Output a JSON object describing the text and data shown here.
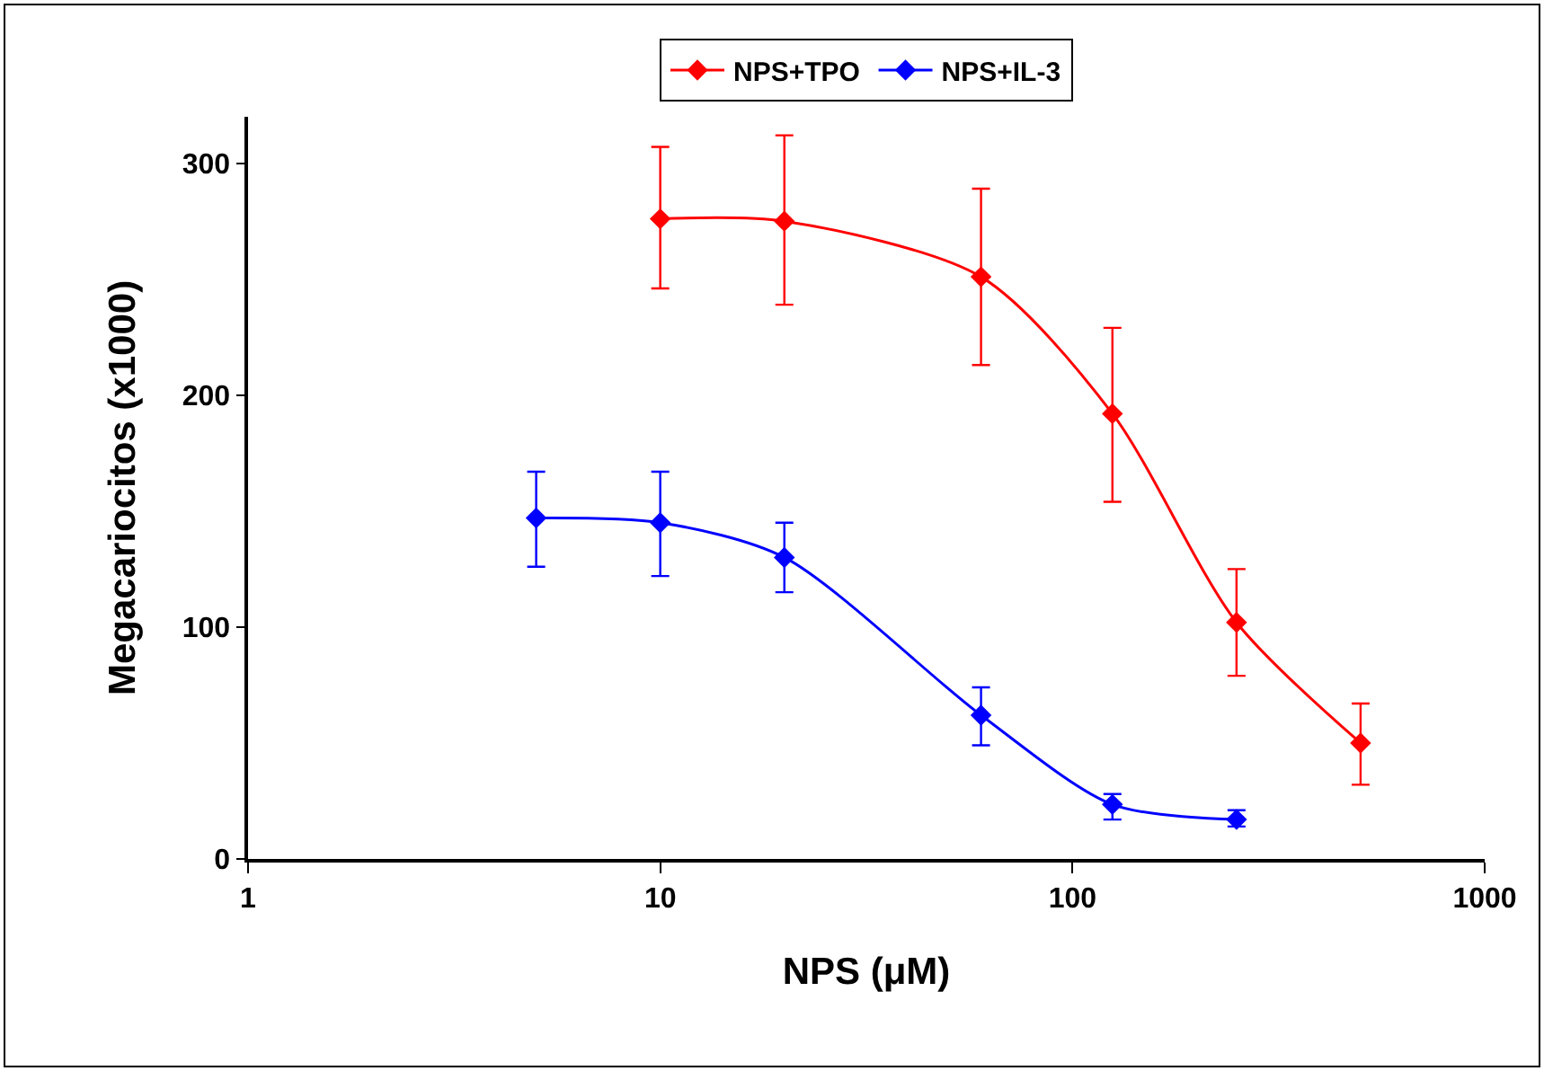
{
  "chart_data": {
    "type": "line",
    "xlabel": "NPS (μM)",
    "ylabel": "Megacariocitos (x1000)",
    "log": "x",
    "xlim": [
      1,
      1000
    ],
    "xticks": [
      1,
      10,
      100,
      1000
    ],
    "ylim": [
      0,
      320
    ],
    "yticks": [
      0,
      100,
      200,
      300
    ],
    "grid": false,
    "legend": "top",
    "marker": "diamond",
    "line_style": "solid",
    "series": [
      {
        "name": "NPS+TPO",
        "color": "#ff0000",
        "x": [
          10,
          20,
          60,
          125,
          250,
          500
        ],
        "values": [
          276,
          275,
          251,
          192,
          102,
          50
        ],
        "errors": [
          [
            246,
            307
          ],
          [
            239,
            312
          ],
          [
            213,
            289
          ],
          [
            154,
            229
          ],
          [
            79,
            125
          ],
          [
            32,
            67
          ]
        ]
      },
      {
        "name": "NPS+IL-3",
        "color": "#0000ff",
        "x": [
          5,
          10,
          20,
          60,
          125,
          250
        ],
        "values": [
          147,
          145,
          130,
          62,
          23.5,
          17
        ],
        "errors": [
          [
            126,
            167
          ],
          [
            122,
            167
          ],
          [
            115,
            145
          ],
          [
            49,
            74
          ],
          [
            17,
            28
          ],
          [
            14,
            21
          ]
        ]
      }
    ]
  }
}
